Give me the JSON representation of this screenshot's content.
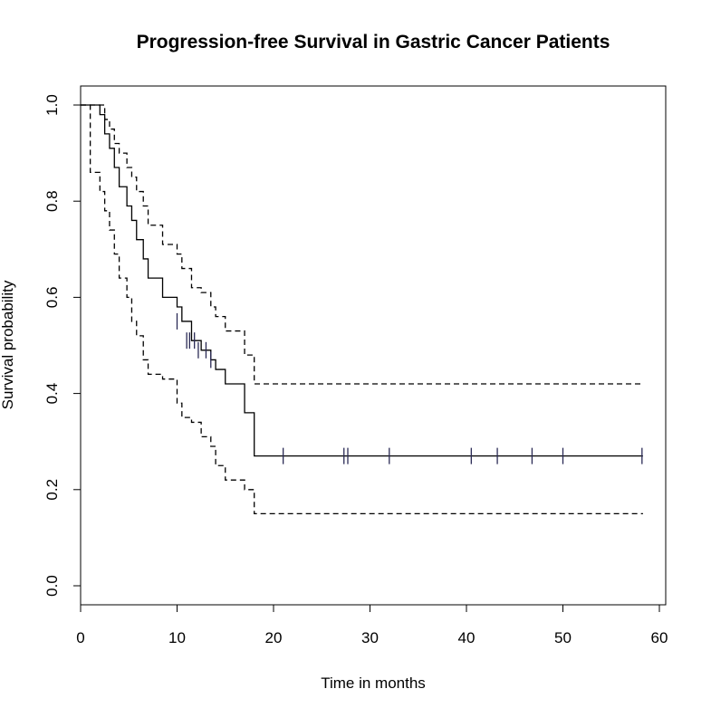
{
  "chart_data": {
    "type": "line",
    "title": "Progression-free Survival in Gastric Cancer Patients",
    "xlabel": "Time in months",
    "ylabel": "Survival probability",
    "xlim": [
      0,
      60
    ],
    "ylim": [
      0,
      1.0
    ],
    "x_ticks": [
      "0",
      "10",
      "20",
      "30",
      "40",
      "50",
      "60"
    ],
    "y_ticks": [
      "0.0",
      "0.2",
      "0.4",
      "0.6",
      "0.8",
      "1.0"
    ],
    "grid": false,
    "legend": "none",
    "series": [
      {
        "role": "estimate",
        "style": "solid",
        "x": [
          0,
          1,
          2,
          2.5,
          3,
          3.5,
          4,
          4.8,
          5.3,
          5.8,
          6.5,
          7,
          8.5,
          10,
          10.5,
          11.5,
          12.5,
          13.5,
          14,
          15,
          17,
          18,
          58.3
        ],
        "y": [
          1.0,
          1.0,
          0.98,
          0.94,
          0.91,
          0.87,
          0.83,
          0.79,
          0.76,
          0.72,
          0.68,
          0.64,
          0.6,
          0.58,
          0.55,
          0.51,
          0.49,
          0.47,
          0.45,
          0.42,
          0.36,
          0.27,
          0.27
        ],
        "censor_x": [
          10,
          11,
          11.3,
          11.8,
          12.2,
          13,
          13.5,
          21,
          27.3,
          27.7,
          32,
          40.5,
          43.2,
          46.8,
          50,
          58.2
        ],
        "censor_y": [
          0.55,
          0.51,
          0.51,
          0.51,
          0.49,
          0.49,
          0.47,
          0.27,
          0.27,
          0.27,
          0.27,
          0.27,
          0.27,
          0.27,
          0.27,
          0.27
        ]
      },
      {
        "role": "upper 95% CI",
        "style": "dashed",
        "x": [
          0,
          1,
          2,
          2.5,
          3,
          3.5,
          4,
          4.8,
          5.3,
          5.8,
          6.5,
          7,
          8.5,
          10,
          10.5,
          11.5,
          12.5,
          13.5,
          14,
          15,
          17,
          18,
          58.3
        ],
        "y": [
          1.0,
          1.0,
          1.0,
          0.97,
          0.95,
          0.92,
          0.9,
          0.87,
          0.85,
          0.82,
          0.79,
          0.75,
          0.71,
          0.69,
          0.66,
          0.62,
          0.61,
          0.58,
          0.56,
          0.53,
          0.48,
          0.42,
          0.42
        ]
      },
      {
        "role": "lower 95% CI",
        "style": "dashed",
        "x": [
          0,
          1,
          2,
          2.5,
          3,
          3.5,
          4,
          4.8,
          5.3,
          5.8,
          6.5,
          7,
          8.5,
          10,
          10.5,
          11.5,
          12.5,
          13.5,
          14,
          15,
          17,
          18,
          58.3
        ],
        "y": [
          1.0,
          0.86,
          0.82,
          0.78,
          0.74,
          0.69,
          0.64,
          0.6,
          0.55,
          0.52,
          0.47,
          0.44,
          0.43,
          0.38,
          0.35,
          0.34,
          0.31,
          0.29,
          0.25,
          0.22,
          0.2,
          0.15,
          0.15
        ]
      }
    ]
  }
}
